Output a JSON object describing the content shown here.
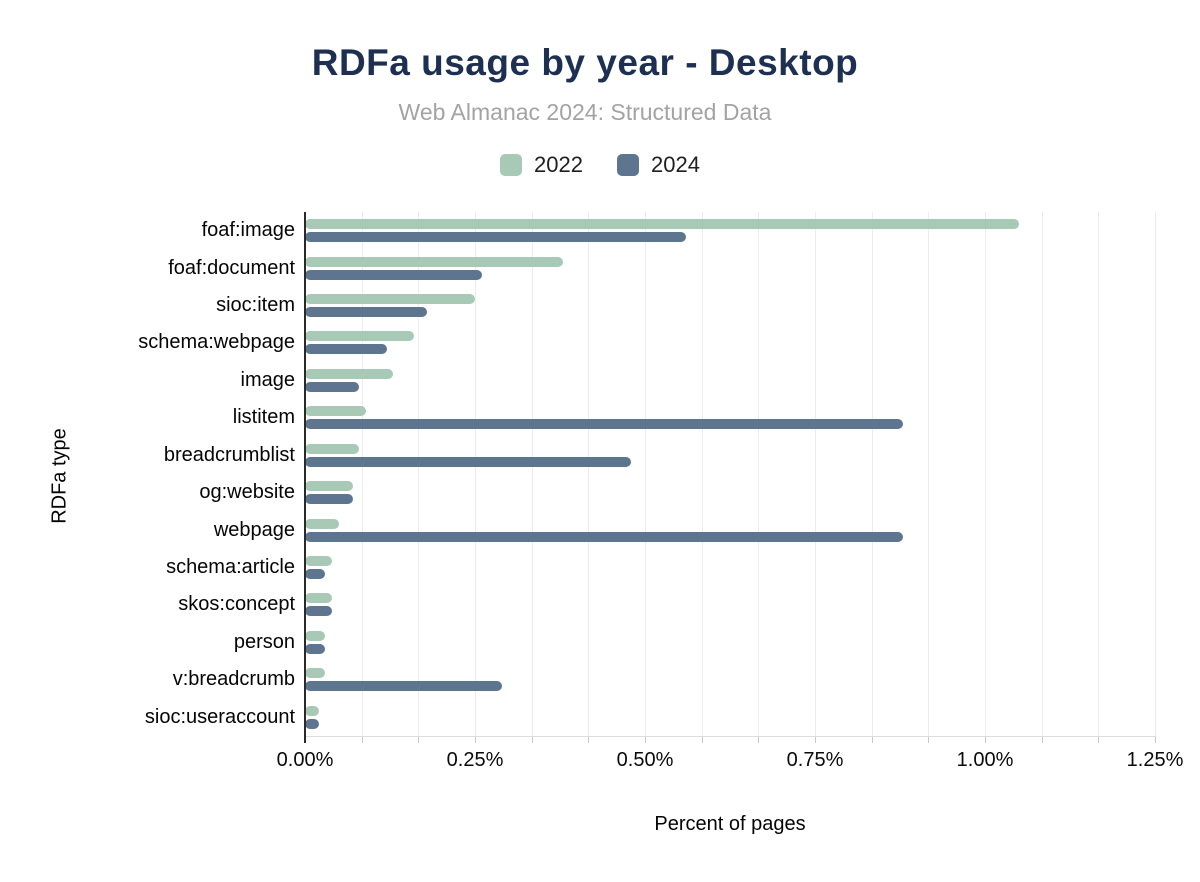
{
  "header": {
    "title": "RDFa usage by year - Desktop",
    "subtitle": "Web Almanac 2024: Structured Data"
  },
  "legend": [
    {
      "label": "2022",
      "color": "#a8c9b6"
    },
    {
      "label": "2024",
      "color": "#5e7590"
    }
  ],
  "axes": {
    "x_title": "Percent of pages",
    "y_title": "RDFa type",
    "x_tick_labels": [
      "0.00%",
      "0.25%",
      "0.50%",
      "0.75%",
      "1.00%",
      "1.25%"
    ]
  },
  "colors": {
    "title": "#1d3051",
    "subtitle": "#a3a3a3",
    "series_2022": "#a8c9b6",
    "series_2024": "#5e7590",
    "gridline": "#ececec",
    "axis_line": "#2a2a2a"
  },
  "chart_data": {
    "type": "bar",
    "orientation": "horizontal",
    "title": "RDFa usage by year - Desktop",
    "subtitle": "Web Almanac 2024: Structured Data",
    "xlabel": "Percent of pages",
    "ylabel": "RDFa type",
    "xlim": [
      0,
      1.25
    ],
    "x_tick_labels": [
      "0.00%",
      "0.25%",
      "0.50%",
      "0.75%",
      "1.00%",
      "1.25%"
    ],
    "grid": "vertical light gridlines, 15 divisions (every 0.0833%)",
    "legend_position": "top-center",
    "value_unit": "percent of pages",
    "categories": [
      "foaf:image",
      "foaf:document",
      "sioc:item",
      "schema:webpage",
      "image",
      "listitem",
      "breadcrumblist",
      "og:website",
      "webpage",
      "schema:article",
      "skos:concept",
      "person",
      "v:breadcrumb",
      "sioc:useraccount"
    ],
    "series": [
      {
        "name": "2022",
        "color": "#a8c9b6",
        "values": [
          1.05,
          0.38,
          0.25,
          0.16,
          0.13,
          0.09,
          0.08,
          0.07,
          0.05,
          0.04,
          0.04,
          0.03,
          0.03,
          0.02
        ]
      },
      {
        "name": "2024",
        "color": "#5e7590",
        "values": [
          0.56,
          0.26,
          0.18,
          0.12,
          0.08,
          0.88,
          0.48,
          0.07,
          0.88,
          0.03,
          0.04,
          0.03,
          0.29,
          0.02
        ]
      }
    ]
  }
}
